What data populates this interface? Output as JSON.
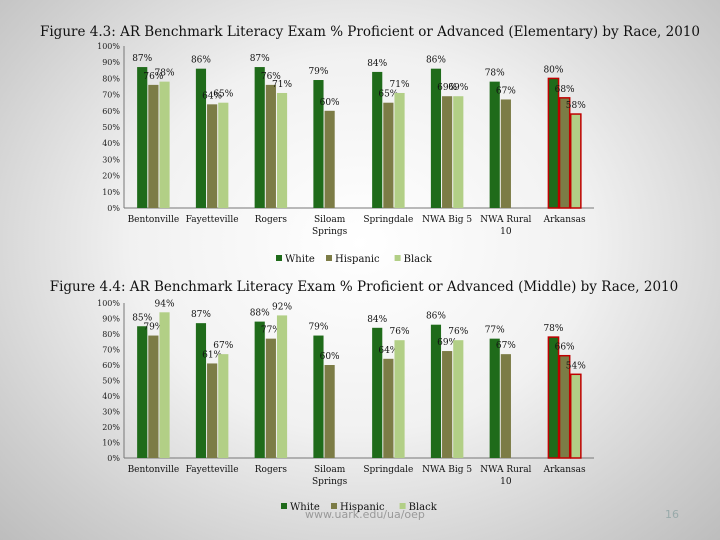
{
  "colors": {
    "white": "#1f6b1a",
    "hispanic": "#7c7c46",
    "black": "#b2cf86",
    "highlight": "#c00000"
  },
  "footer": {
    "url": "www.uark.edu/ua/oep",
    "page": "16"
  },
  "chart_data": [
    {
      "type": "bar",
      "title": "Figure 4.3: AR Benchmark Literacy Exam % Proficient or Advanced (Elementary) by Race, 2010",
      "categories": [
        "Bentonville",
        "Fayetteville",
        "Rogers",
        "Siloam Springs",
        "Springdale",
        "NWA Big 5",
        "NWA Rural 10",
        "Arkansas"
      ],
      "category_lines": [
        [
          "Bentonville"
        ],
        [
          "Fayetteville"
        ],
        [
          "Rogers"
        ],
        [
          "Siloam",
          "Springs"
        ],
        [
          "Springdale"
        ],
        [
          "NWA Big 5"
        ],
        [
          "NWA Rural",
          "10"
        ],
        [
          "Arkansas"
        ]
      ],
      "series": [
        {
          "name": "White",
          "values": [
            87,
            86,
            87,
            79,
            84,
            86,
            78,
            80
          ]
        },
        {
          "name": "Hispanic",
          "values": [
            76,
            64,
            76,
            60,
            65,
            69,
            67,
            68
          ]
        },
        {
          "name": "Black",
          "values": [
            78,
            65,
            71,
            null,
            71,
            69,
            null,
            58
          ]
        }
      ],
      "ytick_labels": [
        "0%",
        "10%",
        "20%",
        "30%",
        "40%",
        "50%",
        "60%",
        "70%",
        "80%",
        "90%",
        "100%"
      ],
      "ylim": [
        0,
        100
      ],
      "value_suffix": "%",
      "highlight_category": "Arkansas",
      "legend": "bottom"
    },
    {
      "type": "bar",
      "title": "Figure 4.4: AR Benchmark Literacy Exam % Proficient or Advanced (Middle) by Race, 2010",
      "categories": [
        "Bentonville",
        "Fayetteville",
        "Rogers",
        "Siloam Springs",
        "Springdale",
        "NWA Big 5",
        "NWA Rural 10",
        "Arkansas"
      ],
      "category_lines": [
        [
          "Bentonville"
        ],
        [
          "Fayetteville"
        ],
        [
          "Rogers"
        ],
        [
          "Siloam",
          "Springs"
        ],
        [
          "Springdale"
        ],
        [
          "NWA Big 5"
        ],
        [
          "NWA Rural",
          "10"
        ],
        [
          "Arkansas"
        ]
      ],
      "series": [
        {
          "name": "White",
          "values": [
            85,
            87,
            88,
            79,
            84,
            86,
            77,
            78
          ]
        },
        {
          "name": "Hispanic",
          "values": [
            79,
            61,
            77,
            60,
            64,
            69,
            67,
            66
          ]
        },
        {
          "name": "Black",
          "values": [
            94,
            67,
            92,
            null,
            76,
            76,
            null,
            54
          ]
        }
      ],
      "ytick_labels": [
        "0%",
        "10%",
        "20%",
        "30%",
        "40%",
        "50%",
        "60%",
        "70%",
        "80%",
        "90%",
        "100%"
      ],
      "ylim": [
        0,
        100
      ],
      "value_suffix": "%",
      "highlight_category": "Arkansas",
      "legend": "bottom"
    }
  ]
}
